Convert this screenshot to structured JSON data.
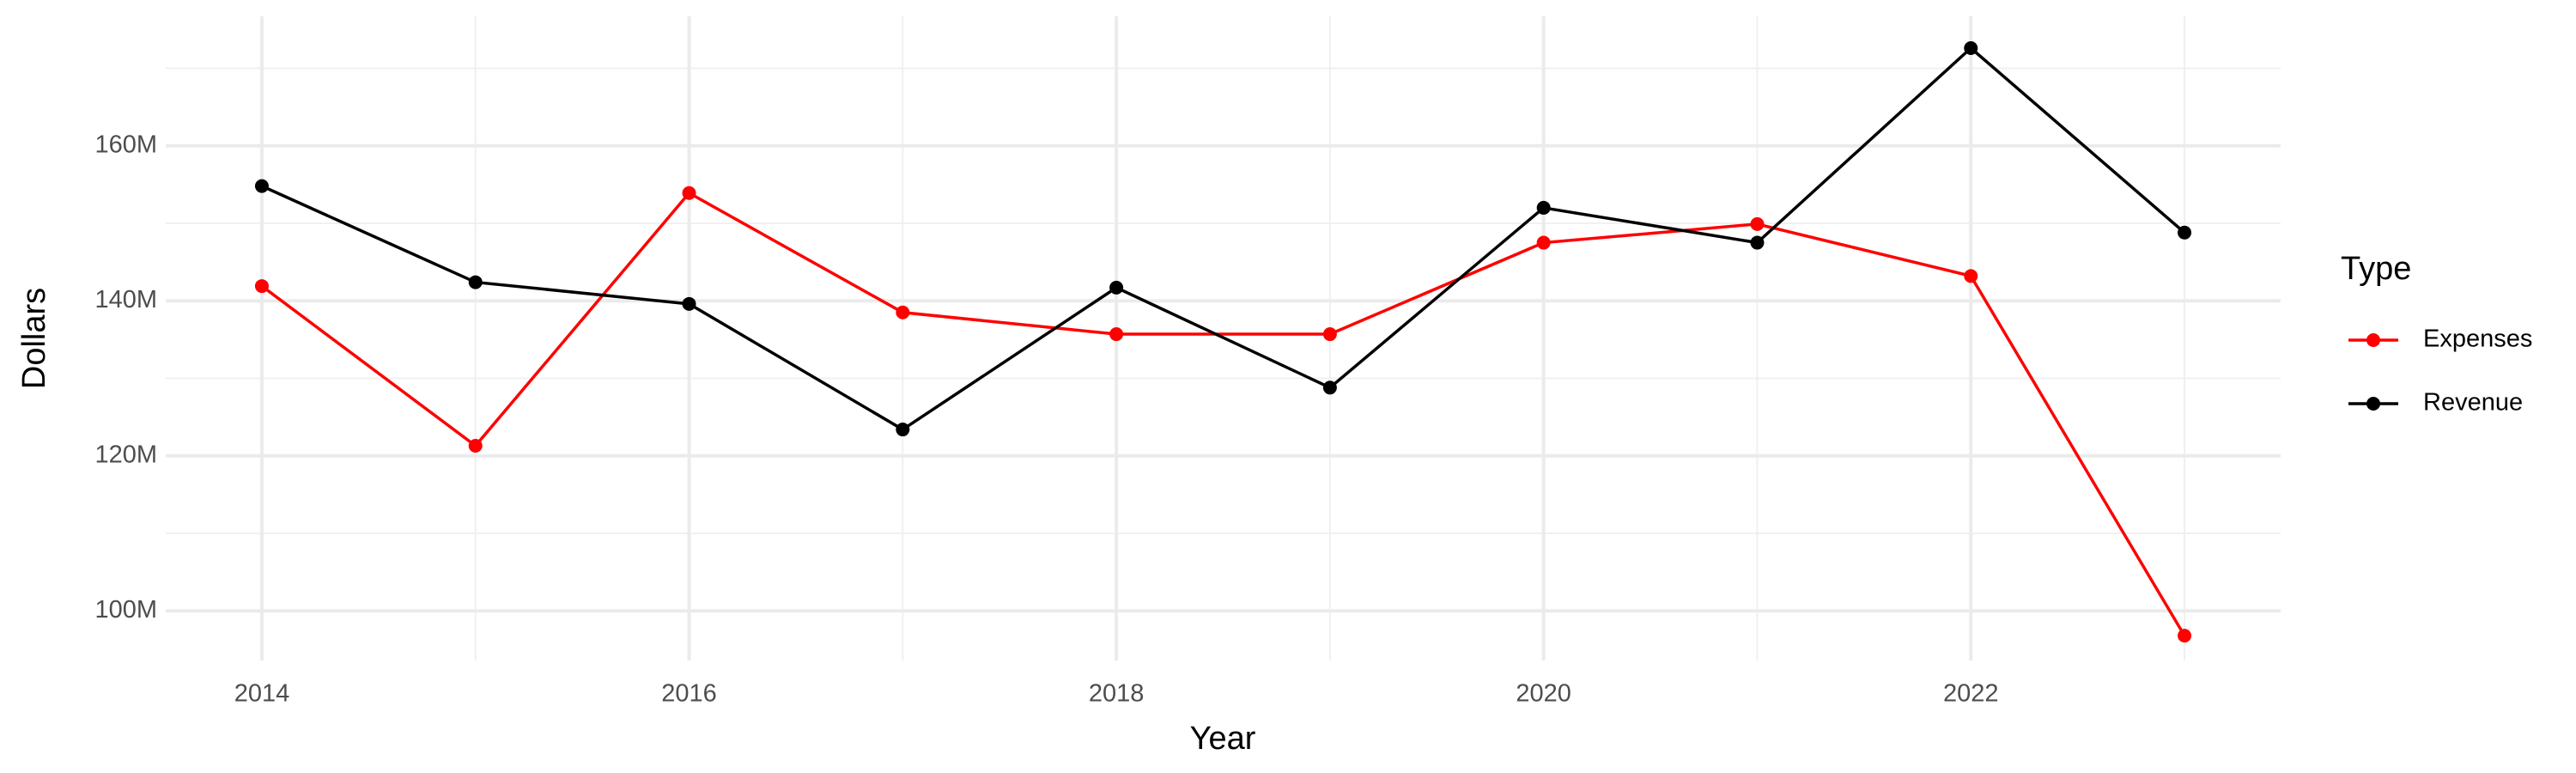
{
  "chart_data": {
    "type": "line",
    "x_label": "Year",
    "y_label": "Dollars",
    "legend_title": "Type",
    "x": [
      2014,
      2015,
      2016,
      2017,
      2018,
      2019,
      2020,
      2021,
      2022,
      2023
    ],
    "series": [
      {
        "name": "Expenses",
        "color": "#ff0000",
        "values": [
          141900000,
          121300000,
          153900000,
          138500000,
          135700000,
          135700000,
          147500000,
          149900000,
          143200000,
          96800000
        ]
      },
      {
        "name": "Revenue",
        "color": "#000000",
        "values": [
          154800000,
          142400000,
          139600000,
          123400000,
          141700000,
          128800000,
          152000000,
          147500000,
          172600000,
          148800000
        ]
      }
    ],
    "xlim": [
      2013.55,
      2023.45
    ],
    "xticks": [
      2014,
      2016,
      2018,
      2020,
      2022
    ],
    "ylim": [
      93600000,
      176700000
    ],
    "yticks": [
      {
        "value": 100000000,
        "label": "100M"
      },
      {
        "value": 120000000,
        "label": "120M"
      },
      {
        "value": 140000000,
        "label": "140M"
      },
      {
        "value": 160000000,
        "label": "160M"
      }
    ],
    "grid": true,
    "legend": "right"
  }
}
